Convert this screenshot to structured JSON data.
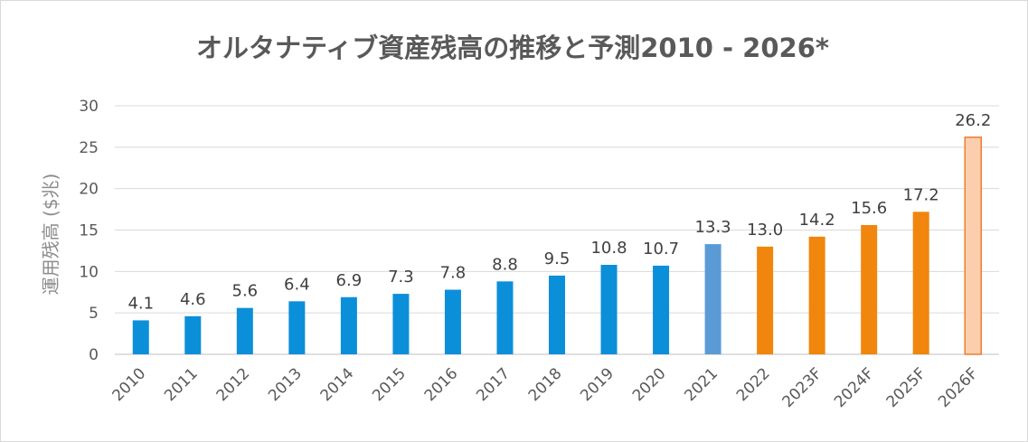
{
  "chart_data": {
    "type": "bar",
    "title": "オルタナティブ資産残高の推移と予測2010 - 2026*",
    "xlabel": "",
    "ylabel": "運用残高 ($兆)",
    "ylim": [
      0,
      30
    ],
    "yticks": [
      0,
      5,
      10,
      15,
      20,
      25,
      30
    ],
    "grid": true,
    "legend": "none",
    "categories": [
      "2010",
      "2011",
      "2012",
      "2013",
      "2014",
      "2015",
      "2016",
      "2017",
      "2018",
      "2019",
      "2020",
      "2021",
      "2022",
      "2023F",
      "2024F",
      "2025F",
      "2026F"
    ],
    "values": [
      4.1,
      4.6,
      5.6,
      6.4,
      6.9,
      7.3,
      7.8,
      8.8,
      9.5,
      10.8,
      10.7,
      13.3,
      13.0,
      14.2,
      15.6,
      17.2,
      26.2
    ],
    "data_labels": [
      "4.1",
      "4.6",
      "5.6",
      "6.4",
      "6.9",
      "7.3",
      "7.8",
      "8.8",
      "9.5",
      "10.8",
      "10.7",
      "13.3",
      "13.0",
      "14.2",
      "15.6",
      "17.2",
      "26.2"
    ],
    "bar_colors": [
      "#0c8fd9",
      "#0c8fd9",
      "#0c8fd9",
      "#0c8fd9",
      "#0c8fd9",
      "#0c8fd9",
      "#0c8fd9",
      "#0c8fd9",
      "#0c8fd9",
      "#0c8fd9",
      "#0c8fd9",
      "#5b9bd5",
      "#f0860d",
      "#f0860d",
      "#f0860d",
      "#f0860d",
      "#fbcfae"
    ],
    "bar_outline_colors": [
      "",
      "",
      "",
      "",
      "",
      "",
      "",
      "",
      "",
      "",
      "",
      "",
      "",
      "",
      "",
      "",
      "#ed7d31"
    ],
    "colors": {
      "grid": "#d9d9d9",
      "text": "#595959",
      "title": "#595959",
      "label": "#404040"
    }
  }
}
